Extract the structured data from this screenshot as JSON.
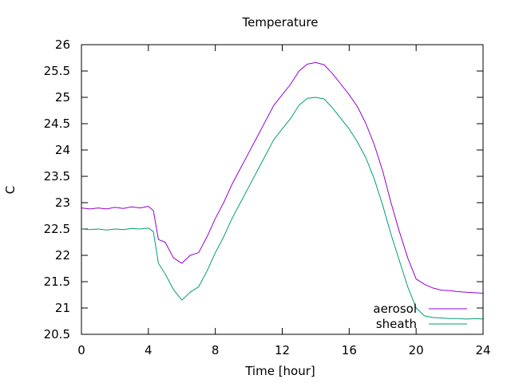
{
  "chart_data": {
    "type": "line",
    "title": "Temperature",
    "xlabel": "Time [hour]",
    "ylabel": "C",
    "xlim": [
      0,
      24
    ],
    "ylim": [
      20.5,
      26
    ],
    "xticks": [
      "0",
      "4",
      "8",
      "12",
      "16",
      "20",
      "24"
    ],
    "yticks": [
      "20.5",
      "21",
      "21.5",
      "22",
      "22.5",
      "23",
      "23.5",
      "24",
      "24.5",
      "25",
      "25.5",
      "26"
    ],
    "grid": false,
    "legend_position": "bottom-right",
    "series": [
      {
        "name": "aerosol",
        "color": "#9400d3",
        "x": [
          0,
          0.5,
          1,
          1.5,
          2,
          2.5,
          3,
          3.5,
          4,
          4.3,
          4.6,
          5,
          5.5,
          6,
          6.5,
          7,
          7.5,
          8,
          8.5,
          9,
          9.5,
          10,
          10.5,
          11,
          11.5,
          12,
          12.5,
          13,
          13.5,
          14,
          14.5,
          15,
          15.5,
          16,
          16.5,
          17,
          17.5,
          18,
          18.5,
          19,
          19.5,
          20,
          20.5,
          21,
          21.5,
          22,
          22.5,
          23,
          23.5,
          24
        ],
        "y": [
          22.9,
          22.88,
          22.9,
          22.88,
          22.91,
          22.89,
          22.92,
          22.9,
          22.93,
          22.85,
          22.3,
          22.25,
          21.95,
          21.85,
          22.0,
          22.05,
          22.35,
          22.7,
          23.0,
          23.35,
          23.65,
          23.95,
          24.25,
          24.55,
          24.85,
          25.05,
          25.25,
          25.5,
          25.63,
          25.66,
          25.62,
          25.45,
          25.25,
          25.05,
          24.82,
          24.5,
          24.1,
          23.6,
          23.0,
          22.45,
          21.95,
          21.55,
          21.45,
          21.38,
          21.34,
          21.33,
          21.31,
          21.3,
          21.29,
          21.28
        ]
      },
      {
        "name": "sheath",
        "color": "#009e73",
        "x": [
          0,
          0.5,
          1,
          1.5,
          2,
          2.5,
          3,
          3.5,
          4,
          4.3,
          4.6,
          5,
          5.5,
          6,
          6.5,
          7,
          7.5,
          8,
          8.5,
          9,
          9.5,
          10,
          10.5,
          11,
          11.5,
          12,
          12.5,
          13,
          13.5,
          14,
          14.5,
          15,
          15.5,
          16,
          16.5,
          17,
          17.5,
          18,
          18.5,
          19,
          19.5,
          20,
          20.5,
          21,
          21.5,
          22,
          22.5,
          23,
          23.5,
          24
        ],
        "y": [
          22.5,
          22.49,
          22.5,
          22.48,
          22.5,
          22.49,
          22.51,
          22.5,
          22.52,
          22.45,
          21.85,
          21.65,
          21.35,
          21.15,
          21.3,
          21.4,
          21.7,
          22.05,
          22.35,
          22.7,
          23.0,
          23.3,
          23.6,
          23.9,
          24.2,
          24.4,
          24.6,
          24.85,
          24.98,
          25.0,
          24.97,
          24.8,
          24.6,
          24.4,
          24.15,
          23.85,
          23.45,
          22.95,
          22.4,
          21.9,
          21.4,
          21.0,
          20.85,
          20.82,
          20.81,
          20.8,
          20.8,
          20.79,
          20.8,
          20.79
        ]
      }
    ]
  }
}
